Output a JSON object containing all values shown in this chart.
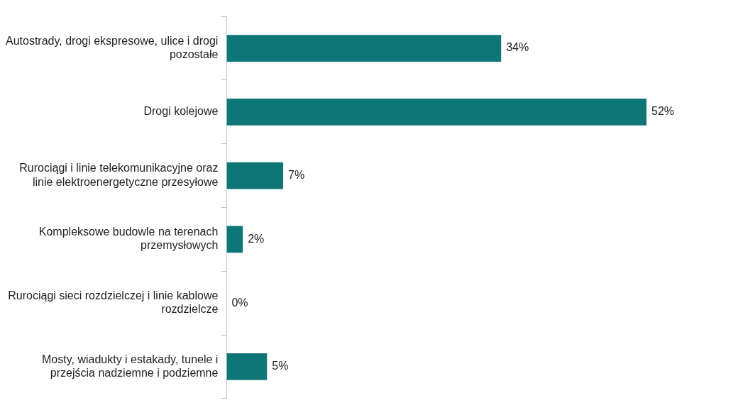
{
  "chart_data": {
    "type": "bar",
    "orientation": "horizontal",
    "categories": [
      "Autostrady, drogi ekspresowe, ulice i drogi pozostałe",
      "Drogi kolejowe",
      "Rurociągi i linie telekomunikacyjne oraz linie elektroenergetyczne przesyłowe",
      "Kompleksowe budowle na terenach przemysłowych",
      "Rurociągi sieci rozdzielczej i linie kablowe rozdzielcze",
      "Mosty, wiadukty i estakady, tunele i przejścia nadziemne i podziemne"
    ],
    "values": [
      34,
      52,
      7,
      2,
      0,
      5
    ],
    "value_labels": [
      "34%",
      "52%",
      "7%",
      "2%",
      "0%",
      "5%"
    ],
    "color": "#0e7677",
    "legend": false,
    "grid": false
  }
}
